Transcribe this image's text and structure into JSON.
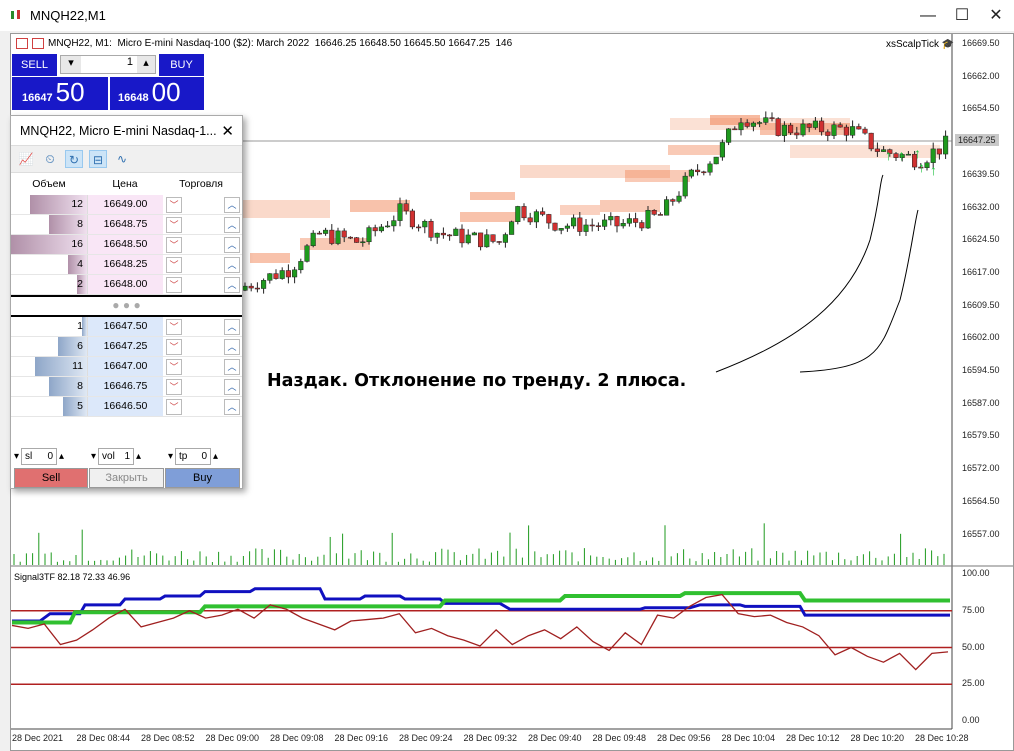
{
  "window": {
    "title": "MNQH22,M1",
    "minimize": "—",
    "maximize": "☐",
    "close": "✕"
  },
  "chart": {
    "info": "MNQH22, M1:  Micro E-mini Nasdaq-100 ($2): March 2022  16646.25 16648.50 16645.50 16647.25  146",
    "indicator_name": "xsScalpTick",
    "price_axis": [
      "16669.50",
      "16662.00",
      "16654.50",
      "16639.50",
      "16632.00",
      "16624.50",
      "16617.00",
      "16609.50",
      "16602.00",
      "16594.50",
      "16587.00",
      "16579.50",
      "16572.00",
      "16564.50",
      "16557.00"
    ],
    "current_price": "16647.25",
    "annotation": "Наздак. Отклонение по тренду. 2 плюса.",
    "colors": {
      "bull": "#1e9a1e",
      "bear": "#d03030",
      "zone": "#f08050",
      "current_price_bg": "#c8c8c8"
    }
  },
  "one_click": {
    "sell_label": "SELL",
    "buy_label": "BUY",
    "volume": "1",
    "bid_big": "16647",
    "bid_small": "50",
    "ask_big": "16648",
    "ask_small": "00"
  },
  "dom": {
    "title": "MNQH22, Micro E-mini Nasdaq-1...",
    "close": "✕",
    "headers": [
      "Объем",
      "Цена",
      "Торговля"
    ],
    "asks": [
      {
        "vol": "12",
        "price": "16649.00"
      },
      {
        "vol": "8",
        "price": "16648.75"
      },
      {
        "vol": "16",
        "price": "16648.50"
      },
      {
        "vol": "4",
        "price": "16648.25"
      },
      {
        "vol": "2",
        "price": "16648.00"
      }
    ],
    "bids": [
      {
        "vol": "1",
        "price": "16647.50"
      },
      {
        "vol": "6",
        "price": "16647.25"
      },
      {
        "vol": "11",
        "price": "16647.00"
      },
      {
        "vol": "8",
        "price": "16646.75"
      },
      {
        "vol": "5",
        "price": "16646.50"
      }
    ],
    "separator": "● ● ●",
    "sl_label": "sl",
    "sl_value": "0",
    "vol_label": "vol",
    "vol_value": "1",
    "tp_label": "tp",
    "tp_value": "0",
    "sell": "Sell",
    "close_pos": "Закрыть",
    "buy": "Buy"
  },
  "indicator": {
    "label": "Signal3TF 82.18 72.33 46.96",
    "axis": [
      "100.00",
      "75.00",
      "50.00",
      "25.00",
      "0.00"
    ],
    "levels": [
      75,
      50,
      25
    ],
    "colors": {
      "tf1": "#1010c0",
      "tf2": "#30c030",
      "tf3": "#a02020",
      "level": "#b02020"
    }
  },
  "time_axis": [
    "28 Dec 2021",
    "28 Dec 08:44",
    "28 Dec 08:52",
    "28 Dec 09:00",
    "28 Dec 09:08",
    "28 Dec 09:16",
    "28 Dec 09:24",
    "28 Dec 09:32",
    "28 Dec 09:40",
    "28 Dec 09:48",
    "28 Dec 09:56",
    "28 Dec 10:04",
    "28 Dec 10:12",
    "28 Dec 10:20",
    "28 Dec 10:28"
  ]
}
